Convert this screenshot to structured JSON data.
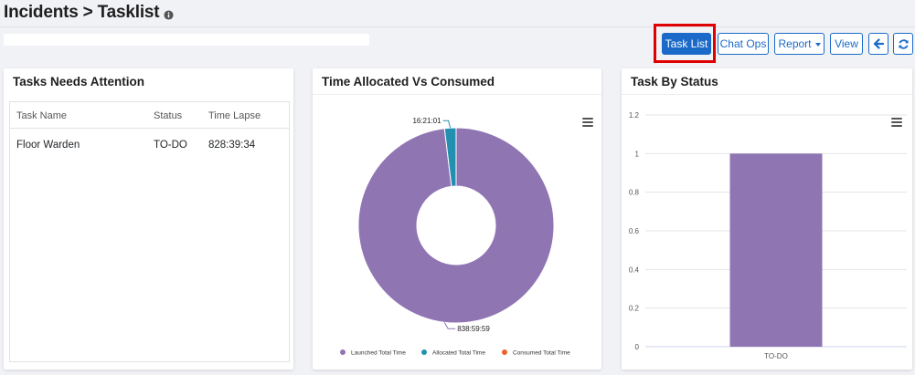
{
  "header": {
    "title": "Incidents > Tasklist",
    "info_icon": "info-icon"
  },
  "toolbar": {
    "task_list": "Task List",
    "chat_ops": "Chat Ops",
    "report": "Report",
    "view": "View",
    "back_icon": "arrow-left-icon",
    "refresh_icon": "refresh-icon"
  },
  "tasks_card": {
    "title": "Tasks Needs Attention",
    "columns": [
      "Task Name",
      "Status",
      "Time Lapse"
    ],
    "rows": [
      {
        "name": "Floor Warden",
        "status": "TO-DO",
        "time_lapse": "828:39:34"
      }
    ]
  },
  "time_card": {
    "title": "Time Allocated Vs Consumed"
  },
  "status_card": {
    "title": "Task By Status"
  },
  "chart_data": [
    {
      "type": "pie",
      "title": "Time Allocated Vs Consumed",
      "donut": true,
      "slices": [
        {
          "label": "Launched Total Time",
          "value_label": "838:59:59",
          "hours": 838.9997,
          "color": "#9075b3"
        },
        {
          "label": "Allocated Total Time",
          "value_label": "16:21:01",
          "hours": 16.3503,
          "color": "#2490b0"
        },
        {
          "label": "Consumed Total Time",
          "value_label": "",
          "hours": 0,
          "color": "#e9632a"
        }
      ],
      "legend": "bottom"
    },
    {
      "type": "bar",
      "title": "Task By Status",
      "categories": [
        "TO-DO"
      ],
      "values": [
        1
      ],
      "ylim": [
        0,
        1.2
      ],
      "yticks": [
        "0",
        "0.2",
        "0.4",
        "0.6",
        "0.8",
        "1",
        "1.2"
      ],
      "bar_color": "#9075b3",
      "grid": true
    }
  ]
}
